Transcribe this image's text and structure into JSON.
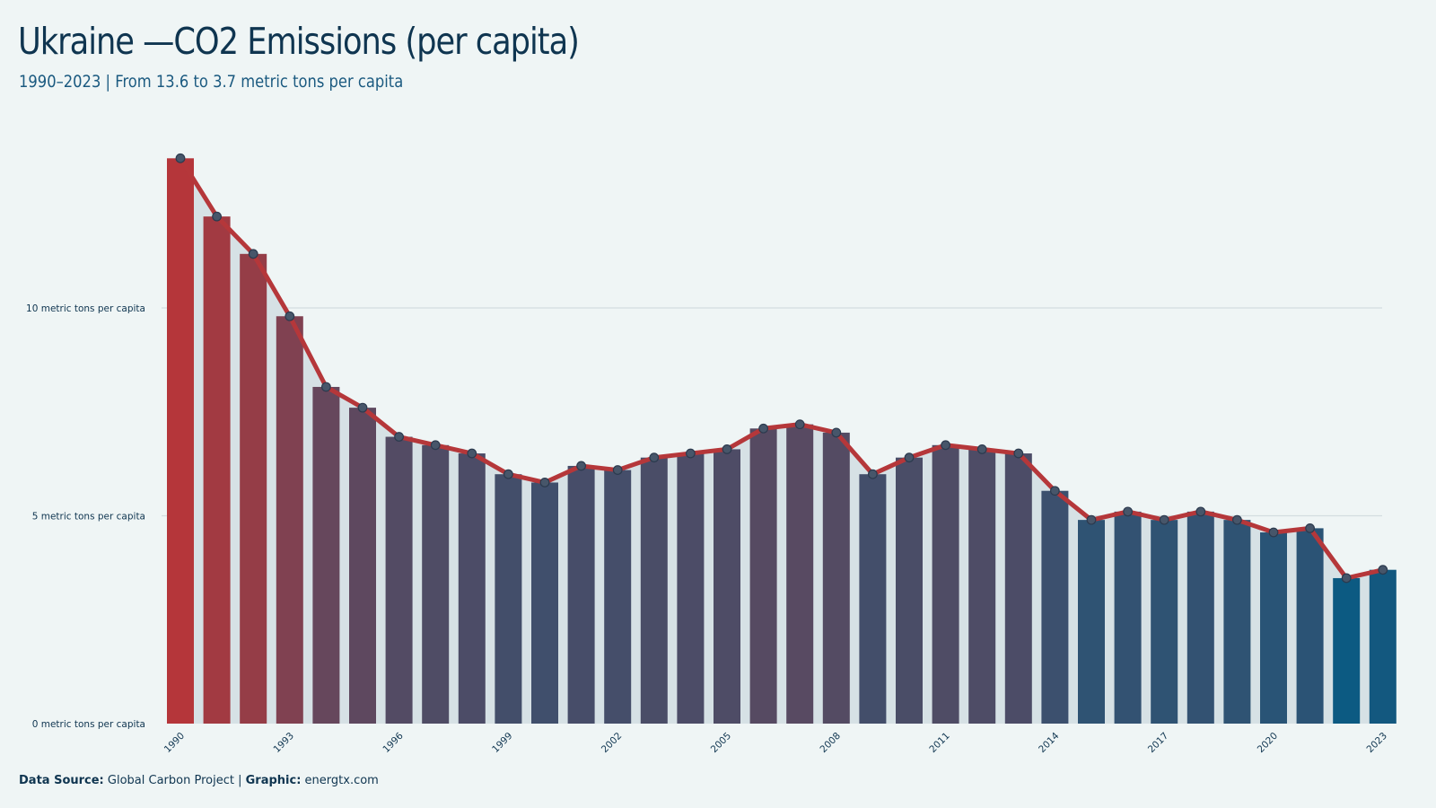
{
  "title": "Ukraine —CO2 Emissions (per capita)",
  "subtitle": "1990–2023 | From 13.6 to 3.7 metric tons per capita",
  "caption": {
    "source_label": "Data Source:",
    "source_value": "Global Carbon Project",
    "separator": "|",
    "graphic_label": "Graphic:",
    "graphic_value": "energtx.com"
  },
  "colors": {
    "background": "#eff5f5",
    "line": "#b5373a",
    "high": "#b5363a",
    "low": "#0c5a82",
    "area": "#d6e1e5",
    "point_fill": "#47566a",
    "point_stroke": "#2c3a4e",
    "grid": "#d3dde0"
  },
  "chart_data": {
    "type": "bar",
    "x": [
      1990,
      1991,
      1992,
      1993,
      1994,
      1995,
      1996,
      1997,
      1998,
      1999,
      2000,
      2001,
      2002,
      2003,
      2004,
      2005,
      2006,
      2007,
      2008,
      2009,
      2010,
      2011,
      2012,
      2013,
      2014,
      2015,
      2016,
      2017,
      2018,
      2019,
      2020,
      2021,
      2022,
      2023
    ],
    "values": [
      13.6,
      12.2,
      11.3,
      9.8,
      8.1,
      7.6,
      6.9,
      6.7,
      6.5,
      6.0,
      5.8,
      6.2,
      6.1,
      6.4,
      6.5,
      6.6,
      7.1,
      7.2,
      7.0,
      6.0,
      6.4,
      6.7,
      6.6,
      6.5,
      5.6,
      4.9,
      5.1,
      4.9,
      5.1,
      4.9,
      4.6,
      4.7,
      3.5,
      3.7
    ],
    "overlay": "line with markers and shaded area",
    "y_ticks": [
      0,
      5,
      10
    ],
    "y_tick_labels": [
      "0 metric tons per capita",
      "5 metric tons per capita",
      "10 metric tons per capita"
    ],
    "x_tick_labels": [
      "1990",
      "1993",
      "1996",
      "1999",
      "2002",
      "2005",
      "2008",
      "2011",
      "2014",
      "2017",
      "2020",
      "2023"
    ],
    "ylim": [
      0,
      14
    ],
    "xlabel": "",
    "ylabel": "",
    "grid": "horizontal",
    "legend": "none"
  }
}
